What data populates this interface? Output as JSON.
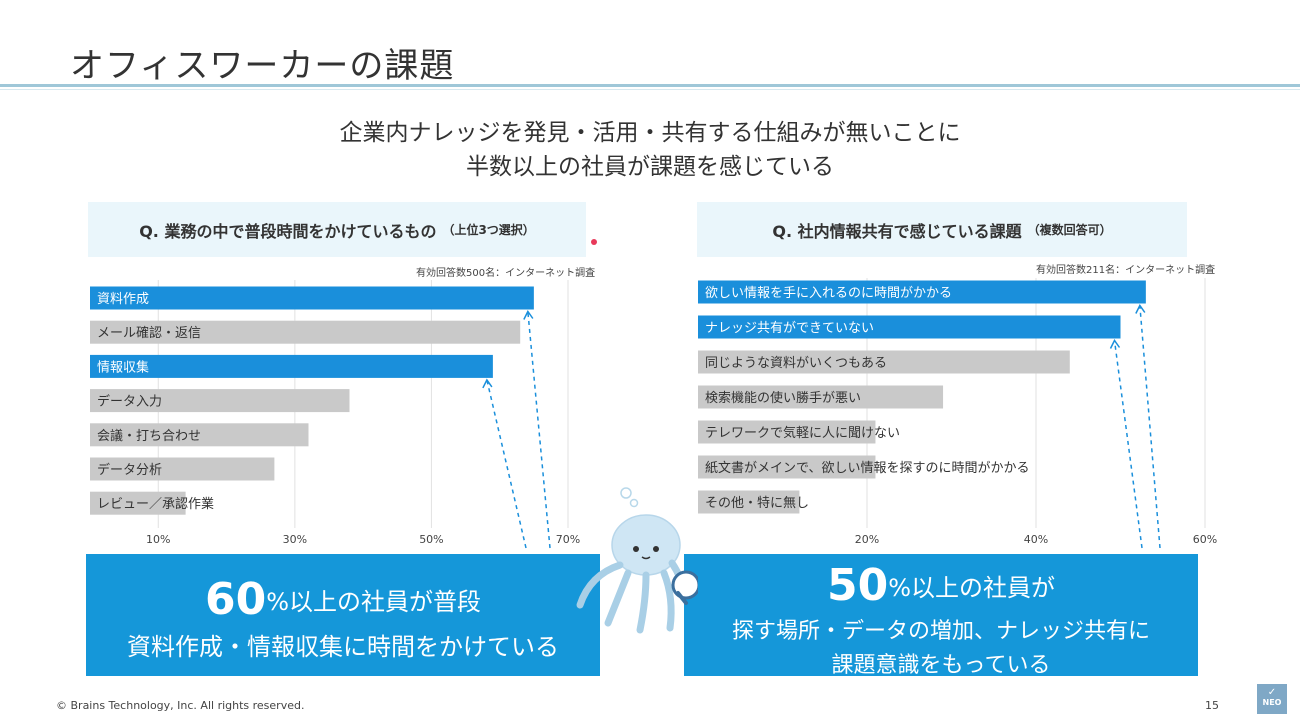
{
  "title": "オフィスワーカーの課題",
  "subtitle": [
    "企業内ナレッジを発見・活用・共有する仕組みが無いことに",
    "半数以上の社員が課題を感じている"
  ],
  "chart_data": [
    {
      "type": "bar",
      "orientation": "horizontal",
      "title": "Q. 業務の中で普段時間をかけているもの",
      "title_note": "（上位3つ選択）",
      "source_note": "有効回答数500名：インターネット調査",
      "categories": [
        "資料作成",
        "メール確認・返信",
        "情報収集",
        "データ入力",
        "会議・打ち合わせ",
        "データ分析",
        "レビュー／承認作業"
      ],
      "values": [
        65,
        63,
        59,
        38,
        32,
        27,
        14
      ],
      "highlight": [
        true,
        false,
        true,
        false,
        false,
        false,
        false
      ],
      "x_ticks": [
        10,
        30,
        50,
        70
      ],
      "tick_labels": [
        "10%",
        "30%",
        "50%",
        "70%"
      ],
      "xlim": [
        0,
        70
      ],
      "grid": true
    },
    {
      "type": "bar",
      "orientation": "horizontal",
      "title": "Q. 社内情報共有で感じている課題",
      "title_note": "（複数回答可）",
      "source_note": "有効回答数211名：インターネット調査",
      "categories": [
        "欲しい情報を手に入れるのに時間がかかる",
        "ナレッジ共有ができていない",
        "同じような資料がいくつもある",
        "検索機能の使い勝手が悪い",
        "テレワークで気軽に人に聞けない",
        "紙文書がメインで、欲しい情報を探すのに時間がかかる",
        "その他・特に無し"
      ],
      "values": [
        53,
        50,
        44,
        29,
        21,
        21,
        12
      ],
      "highlight": [
        true,
        true,
        false,
        false,
        false,
        false,
        false
      ],
      "x_ticks": [
        20,
        40,
        60
      ],
      "tick_labels": [
        "20%",
        "40%",
        "60%"
      ],
      "xlim": [
        0,
        60
      ],
      "grid": true
    }
  ],
  "banners": {
    "left": {
      "big": "60",
      "line1_rest": "%以上の社員が普段",
      "line2": "資料作成・情報収集に時間をかけている"
    },
    "right": {
      "big": "50",
      "line1_rest": "%以上の社員が",
      "line2": "探す場所・データの増加、ナレッジ共有に",
      "line3": "課題意識をもっている"
    }
  },
  "colors": {
    "highlight": "#1a8fdb",
    "normal": "#c9c9c9",
    "banner": "#1597d9",
    "grid": "#e2e2e2"
  },
  "footer": "© Brains Technology, Inc. All rights reserved.",
  "page_number": "15",
  "logo": {
    "text": "NEO",
    "icon": "check-icon"
  }
}
